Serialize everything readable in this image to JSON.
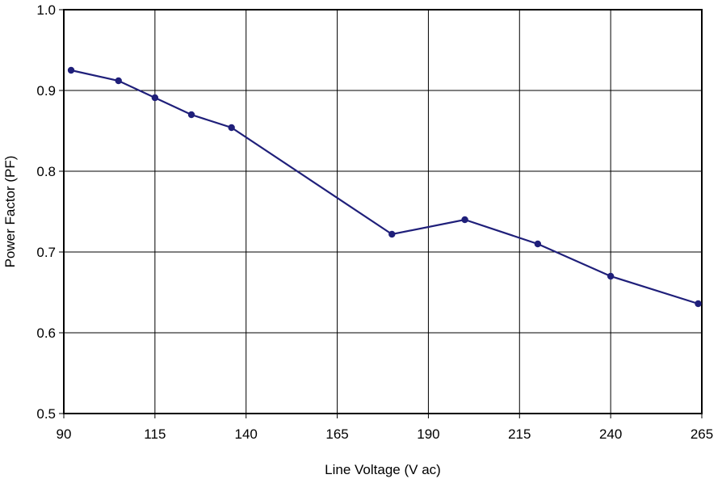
{
  "chart_data": {
    "type": "line",
    "title": "",
    "xlabel": "Line Voltage (V ac)",
    "ylabel": "Power Factor (PF)",
    "xlim": [
      90,
      265
    ],
    "ylim": [
      0.5,
      1.0
    ],
    "x_ticks": [
      "90",
      "115",
      "140",
      "165",
      "190",
      "215",
      "240",
      "265"
    ],
    "y_ticks": [
      "0.5",
      "0.6",
      "0.7",
      "0.8",
      "0.9",
      "1.0"
    ],
    "grid": true,
    "legend": "none",
    "series": [
      {
        "color": "#1f1f7a",
        "x": [
          92,
          105,
          115,
          125,
          136,
          180,
          200,
          220,
          240,
          264
        ],
        "y": [
          0.925,
          0.912,
          0.891,
          0.87,
          0.854,
          0.722,
          0.74,
          0.71,
          0.67,
          0.636
        ]
      }
    ]
  }
}
